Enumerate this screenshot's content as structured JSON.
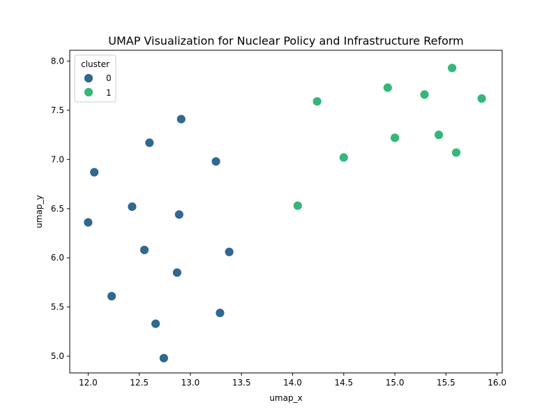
{
  "chart_data": {
    "type": "scatter",
    "title": "UMAP Visualization for Nuclear Policy and Infrastructure Reform",
    "xlabel": "umap_x",
    "ylabel": "umap_y",
    "xlim": [
      11.82,
      16.05
    ],
    "ylim": [
      4.83,
      8.11
    ],
    "xticks": [
      12.0,
      12.5,
      13.0,
      13.5,
      14.0,
      14.5,
      15.0,
      15.5,
      16.0
    ],
    "yticks": [
      5.0,
      5.5,
      6.0,
      6.5,
      7.0,
      7.5,
      8.0
    ],
    "grid": false,
    "legend": {
      "title": "cluster",
      "position": "top-left",
      "entries": [
        "0",
        "1"
      ]
    },
    "colors": {
      "0": "#31688e",
      "1": "#35b779"
    },
    "series": [
      {
        "name": "0",
        "points": [
          [
            12.91,
            7.41
          ],
          [
            12.6,
            7.17
          ],
          [
            13.25,
            6.98
          ],
          [
            12.06,
            6.87
          ],
          [
            12.43,
            6.52
          ],
          [
            12.89,
            6.44
          ],
          [
            12.0,
            6.36
          ],
          [
            12.55,
            6.08
          ],
          [
            13.38,
            6.06
          ],
          [
            12.87,
            5.85
          ],
          [
            12.23,
            5.61
          ],
          [
            13.29,
            5.44
          ],
          [
            12.66,
            5.33
          ],
          [
            12.74,
            4.98
          ]
        ]
      },
      {
        "name": "1",
        "points": [
          [
            15.56,
            7.93
          ],
          [
            14.93,
            7.73
          ],
          [
            15.29,
            7.66
          ],
          [
            15.85,
            7.62
          ],
          [
            14.24,
            7.59
          ],
          [
            15.43,
            7.25
          ],
          [
            15.0,
            7.22
          ],
          [
            15.6,
            7.07
          ],
          [
            14.5,
            7.02
          ],
          [
            14.05,
            6.53
          ]
        ]
      }
    ]
  }
}
